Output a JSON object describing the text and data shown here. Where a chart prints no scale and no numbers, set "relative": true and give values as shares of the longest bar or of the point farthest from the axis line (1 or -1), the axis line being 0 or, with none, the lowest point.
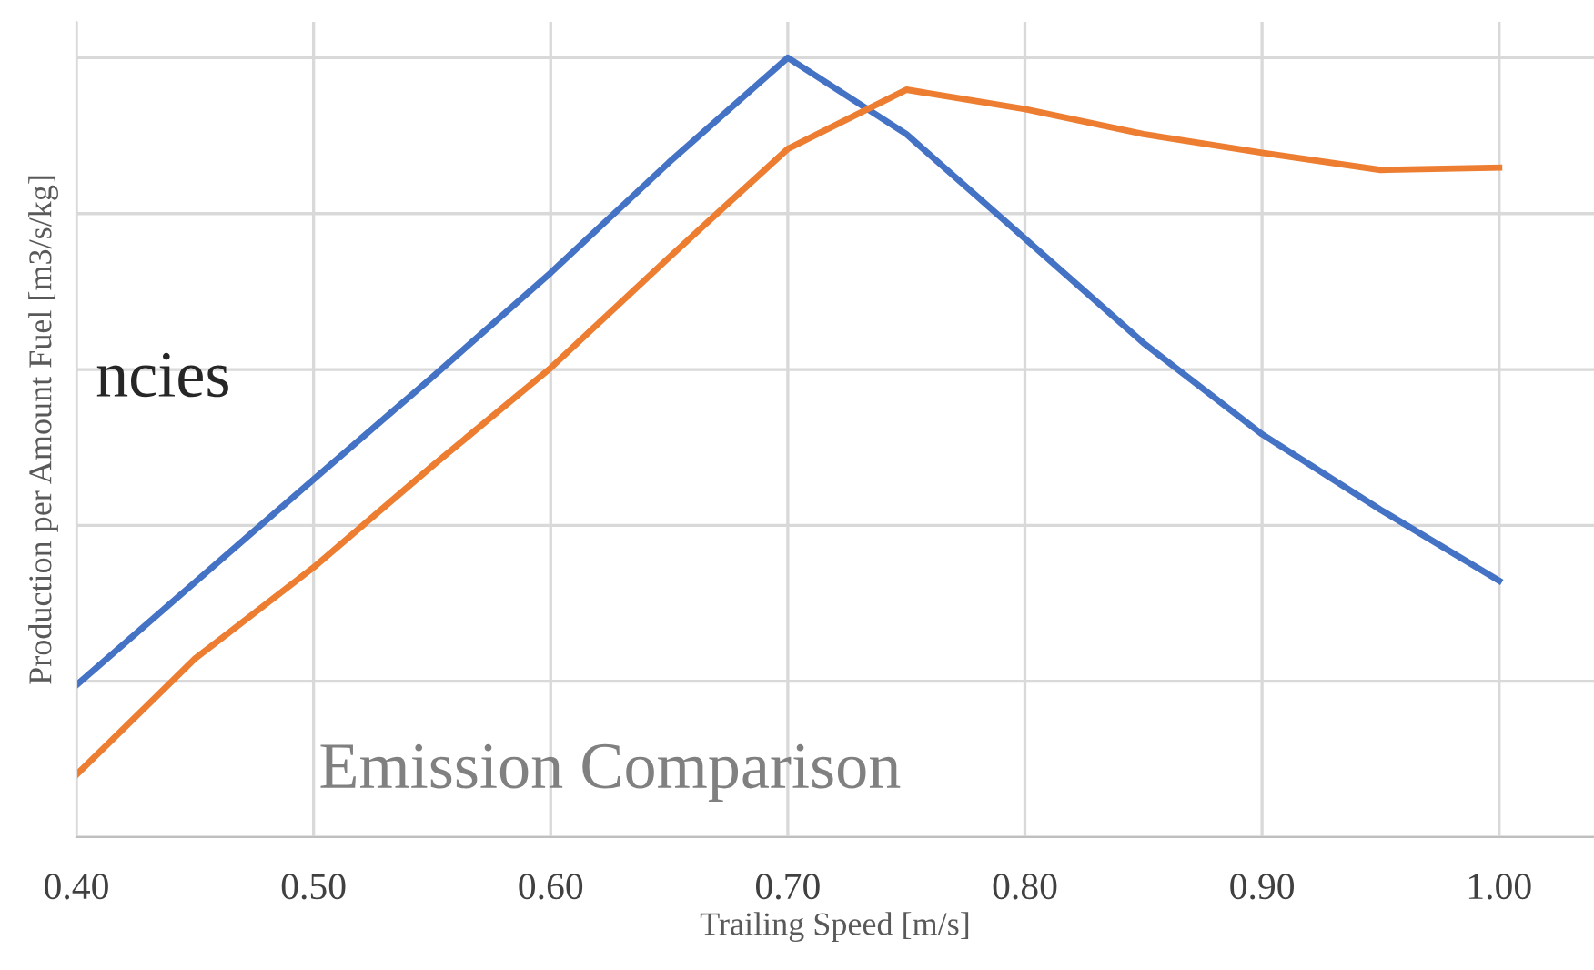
{
  "chart_data": {
    "type": "line",
    "xlabel": "Trailing Speed [m/s]",
    "ylabel": "Production per Amount Fuel [m3/s/kg]",
    "annotations": [
      "ncies",
      "Emission Comparison"
    ],
    "relative": true,
    "xlim": [
      0.4,
      1.04
    ],
    "xticks": [
      {
        "value": 0.4,
        "label": "0.40"
      },
      {
        "value": 0.5,
        "label": "0.50"
      },
      {
        "value": 0.6,
        "label": "0.60"
      },
      {
        "value": 0.7,
        "label": "0.70"
      },
      {
        "value": 0.8,
        "label": "0.80"
      },
      {
        "value": 0.9,
        "label": "0.90"
      },
      {
        "value": 1.0,
        "label": "1.00"
      }
    ],
    "x": [
      0.4,
      0.45,
      0.5,
      0.55,
      0.6,
      0.65,
      0.7,
      0.75,
      0.8,
      0.85,
      0.9,
      0.95,
      1.0
    ],
    "series": [
      {
        "color": "#4472c4",
        "values": [
          0.195,
          0.327,
          0.459,
          0.59,
          0.724,
          0.866,
          1,
          0.902,
          0.768,
          0.634,
          0.517,
          0.42,
          0.329
        ]
      },
      {
        "color": "#ed7d31",
        "values": [
          0.08,
          0.229,
          0.346,
          0.476,
          0.602,
          0.744,
          0.883,
          0.959,
          0.934,
          0.902,
          0.878,
          0.856,
          0.859
        ]
      }
    ],
    "grid": true,
    "line_style": "solid",
    "marker": "none"
  }
}
